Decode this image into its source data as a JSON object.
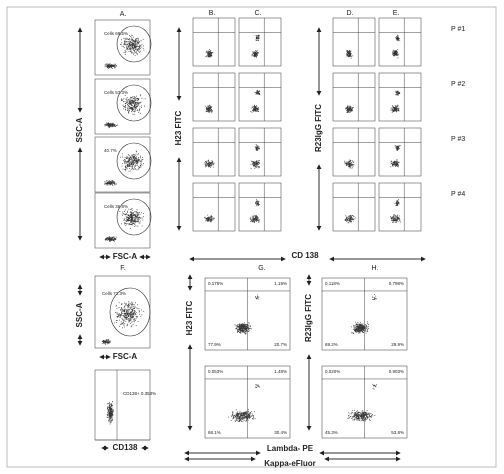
{
  "column_labels": [
    "A.",
    "B.",
    "C.",
    "D.",
    "E.",
    "F.",
    "G.",
    "H."
  ],
  "row_labels": [
    "P #1",
    "P #2",
    "P #3",
    "P #4"
  ],
  "axis_labels": {
    "ssc_top": "SSC-A",
    "fsc_top": "FSC-A",
    "h23_top": "H23 FITC",
    "r23_top": "R23IgG FITC",
    "cd138_top": "CD 138",
    "ssc_bottom": "SSC-A",
    "fsc_bottom": "FSC-A",
    "cd138_bottom": "CD138",
    "h23_bottom": "H23 FITC",
    "r23_bottom": "R23IgG FITC",
    "lambda": "Lambda- PE",
    "kappa": "Kappa-eFluor"
  },
  "panel_a_gates": [
    "Cells 69.5%",
    "Cells 57.3%",
    "40.7%",
    "Cells 36.8%"
  ],
  "panel_f": {
    "gate": "Cells 72.3%",
    "cd138_gate": "CD138+ 0.353%"
  },
  "panel_g": [
    [
      "0.175%",
      "1.19%",
      "77.9%",
      "20.7%"
    ],
    [
      "0.053%",
      "1.48%",
      "68.1%",
      "30.4%"
    ]
  ],
  "panel_h": [
    [
      "0.118%",
      "0.798%",
      "69.2%",
      "29.9%"
    ],
    [
      "0.020%",
      "0.903%",
      "45.3%",
      "53.8%"
    ]
  ]
}
